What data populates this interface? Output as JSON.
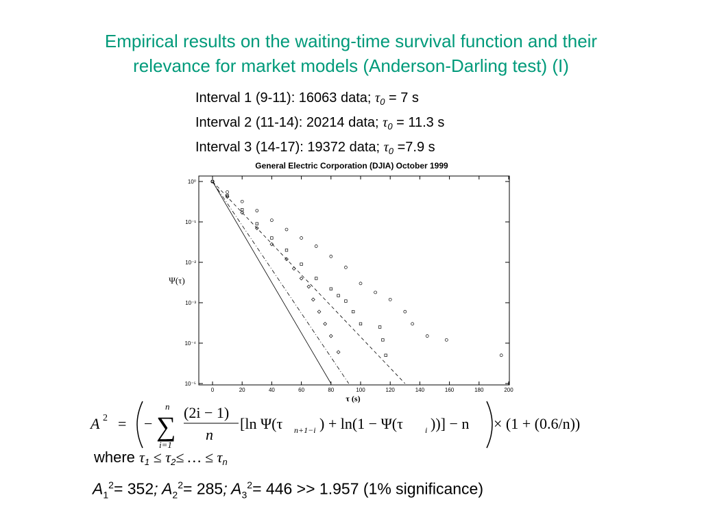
{
  "title": {
    "line1": "Empirical results on the waiting-time survival function and their",
    "line2": "relevance for market models (Anderson-Darling test) (I)"
  },
  "intervals": [
    {
      "prefix": "Interval 1 (9-11): 16063 data; ",
      "tau": "τ",
      "sub": "0",
      "suffix": " = 7 s"
    },
    {
      "prefix": "Interval 2 (11-14): 20214 data; ",
      "tau": "τ",
      "sub": "0",
      "suffix": " = 11.3 s"
    },
    {
      "prefix": "Interval 3 (14-17): 19372 data; ",
      "tau": "τ",
      "sub": "0",
      "suffix": " =7.9 s"
    }
  ],
  "chart_data": {
    "type": "scatter",
    "title": "General Electric Corporation (DJIA) October 1999",
    "xlabel": "τ (s)",
    "ylabel": "Ψ(τ)",
    "xlim": [
      0,
      200
    ],
    "ylim": [
      1e-05,
      1
    ],
    "yscale": "log",
    "xticks": [
      "0",
      "20",
      "40",
      "60",
      "80",
      "100",
      "120",
      "140",
      "160",
      "180",
      "200"
    ],
    "yticks": [
      "10⁰",
      "10⁻¹",
      "10⁻²",
      "10⁻³",
      "10⁻⁴",
      "10⁻⁵"
    ],
    "series": [
      {
        "marker": "circle",
        "points": [
          [
            0,
            1
          ],
          [
            10,
            0.55
          ],
          [
            20,
            0.32
          ],
          [
            30,
            0.19
          ],
          [
            40,
            0.11
          ],
          [
            50,
            0.065
          ],
          [
            60,
            0.04
          ],
          [
            70,
            0.025
          ],
          [
            80,
            0.014
          ],
          [
            90,
            0.0075
          ],
          [
            100,
            0.003
          ],
          [
            110,
            0.0018
          ],
          [
            120,
            0.0012
          ],
          [
            130,
            0.0006
          ],
          [
            135,
            0.0003
          ],
          [
            145,
            0.00015
          ],
          [
            158,
            0.00012
          ],
          [
            195,
            5e-05
          ]
        ]
      },
      {
        "marker": "square",
        "points": [
          [
            0,
            1
          ],
          [
            10,
            0.45
          ],
          [
            20,
            0.2
          ],
          [
            30,
            0.09
          ],
          [
            40,
            0.04
          ],
          [
            50,
            0.02
          ],
          [
            60,
            0.009
          ],
          [
            70,
            0.004
          ],
          [
            80,
            0.0022
          ],
          [
            85,
            0.0015
          ],
          [
            90,
            0.0011
          ],
          [
            95,
            0.0006
          ],
          [
            100,
            0.0003
          ],
          [
            113,
            0.00025
          ],
          [
            115,
            0.00012
          ],
          [
            117,
            5e-05
          ]
        ]
      },
      {
        "marker": "diamond",
        "points": [
          [
            0,
            1
          ],
          [
            10,
            0.42
          ],
          [
            20,
            0.17
          ],
          [
            30,
            0.07
          ],
          [
            40,
            0.028
          ],
          [
            50,
            0.012
          ],
          [
            55,
            0.007
          ],
          [
            60,
            0.004
          ],
          [
            65,
            0.0025
          ],
          [
            68,
            0.0012
          ],
          [
            72,
            0.0006
          ],
          [
            76,
            0.0003
          ],
          [
            80,
            0.00015
          ],
          [
            85,
            6e-05
          ]
        ]
      }
    ],
    "fit_lines": [
      {
        "style": "solid",
        "from": [
          0,
          1
        ],
        "to": [
          80,
          1e-05
        ]
      },
      {
        "style": "dashdot",
        "from": [
          0,
          1
        ],
        "to": [
          92,
          1e-05
        ]
      },
      {
        "style": "dashed",
        "from": [
          0,
          1
        ],
        "to": [
          130,
          1e-05
        ]
      }
    ]
  },
  "formula": {
    "lhs": "A",
    "lhs_sup": "2",
    "eq": "=",
    "minus": "−",
    "sum_top": "n",
    "sum_bottom": "i=1",
    "num": "(2i − 1)",
    "den": "n",
    "body1": "[ln Ψ(τ",
    "body1_sub": "n+1−i",
    "body2": ") + ln(1 − Ψ(τ",
    "body2_sub": "i",
    "body3": "))] − n",
    "times": "× (1 + (0.6/n))"
  },
  "where": {
    "word": "where ",
    "expr": "τ",
    "s1": "1",
    "le1": " ≤ τ",
    "s2": "2",
    "le2": "≤ … ≤ τ",
    "sn": "n"
  },
  "results": {
    "a": "A",
    "s1": "1",
    "v1": "= 352",
    "semi": "; ",
    "s2": "2",
    "v2": "= 285",
    "s3": "3",
    "v3": "= 446 >> 1.957 (1% significance)",
    "sup": "2"
  }
}
